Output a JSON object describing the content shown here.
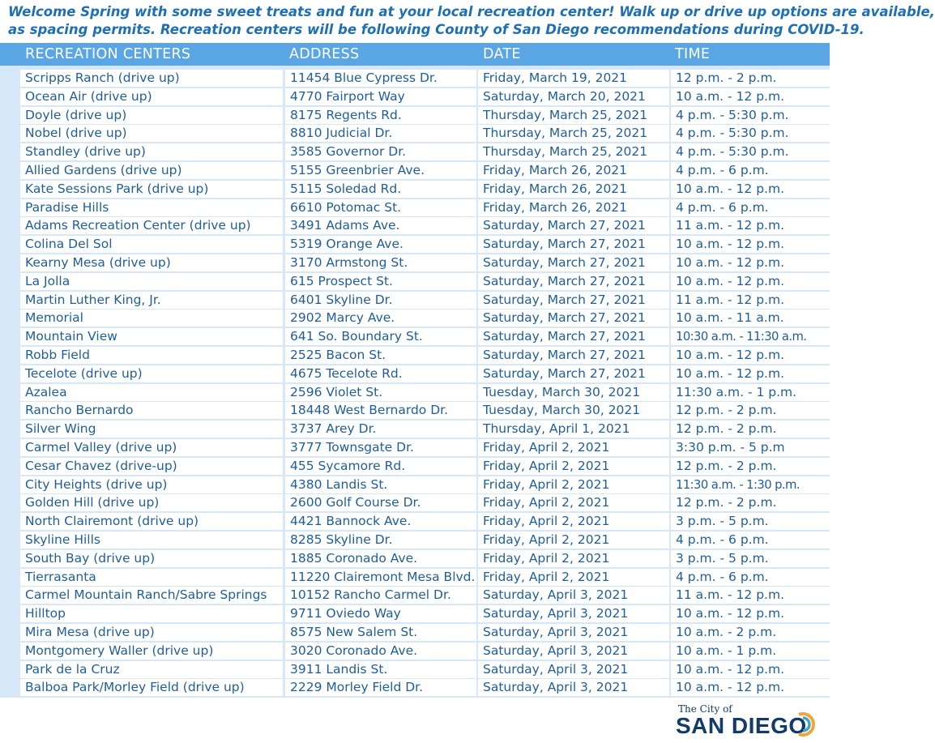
{
  "intro": {
    "line1": "Welcome Spring with some sweet treats and fun at your local recreation center! Walk up or drive up options are available,",
    "line2": "as spacing permits. Recreation centers will be following County of San Diego recommendations  during COVID-19."
  },
  "header": {
    "col0": "RECREATION CENTERS",
    "col1": "ADDRESS",
    "col2": "DATE",
    "col3": "TIME"
  },
  "rows": [
    [
      "Scripps Ranch (drive up)",
      "11454 Blue Cypress Dr.",
      "Friday, March 19, 2021",
      "12 p.m. - 2 p.m."
    ],
    [
      "Ocean Air (drive up)",
      "4770 Fairport Way",
      "Saturday, March 20, 2021",
      "10 a.m. - 12 p.m."
    ],
    [
      "Doyle (drive up)",
      "8175 Regents Rd.",
      "Thursday, March 25, 2021",
      "4 p.m. - 5:30 p.m."
    ],
    [
      "Nobel (drive up)",
      "8810 Judicial Dr.",
      "Thursday, March 25, 2021",
      "4 p.m. - 5:30 p.m."
    ],
    [
      "Standley (drive up)",
      "3585 Governor Dr.",
      "Thursday, March 25, 2021",
      "4 p.m. - 5:30 p.m."
    ],
    [
      "Allied Gardens (drive up)",
      "5155 Greenbrier Ave.",
      "Friday, March 26, 2021",
      "4 p.m. - 6 p.m."
    ],
    [
      "Kate Sessions Park (drive up)",
      "5115 Soledad Rd.",
      "Friday, March 26, 2021",
      "10 a.m. - 12 p.m."
    ],
    [
      "Paradise Hills",
      "6610 Potomac St.",
      "Friday, March 26, 2021",
      "4 p.m. - 6 p.m."
    ],
    [
      "Adams Recreation Center (drive up)",
      "3491 Adams Ave.",
      "Saturday, March 27, 2021",
      "11 a.m. - 12 p.m."
    ],
    [
      "Colina Del Sol",
      "5319 Orange Ave.",
      "Saturday, March 27, 2021",
      "10 a.m. - 12 p.m."
    ],
    [
      "Kearny Mesa (drive up)",
      "3170 Armstong St.",
      "Saturday, March 27, 2021",
      "10 a.m. - 12 p.m."
    ],
    [
      "La Jolla",
      "615 Prospect St.",
      "Saturday, March 27, 2021",
      "10 a.m. - 12 p.m."
    ],
    [
      "Martin Luther King, Jr.",
      "6401 Skyline Dr.",
      "Saturday, March 27, 2021",
      "11 a.m. - 12 p.m."
    ],
    [
      "Memorial",
      "2902 Marcy Ave.",
      "Saturday, March 27, 2021",
      "10 a.m. - 11 a.m."
    ],
    [
      "Mountain View",
      "641 So. Boundary St.",
      "Saturday, March 27, 2021",
      "10:30 a.m. - 11:30 a.m."
    ],
    [
      "Robb Field",
      "2525 Bacon St.",
      "Saturday, March 27, 2021",
      "10 a.m. - 12 p.m."
    ],
    [
      "Tecelote (drive up)",
      "4675 Tecelote Rd.",
      "Saturday, March 27, 2021",
      "10 a.m. - 12 p.m."
    ],
    [
      "Azalea",
      "2596 Violet St.",
      "Tuesday, March 30, 2021",
      "11:30 a.m. - 1 p.m."
    ],
    [
      "Rancho Bernardo",
      "18448 West Bernardo Dr.",
      "Tuesday, March 30, 2021",
      "12 p.m. - 2 p.m."
    ],
    [
      "Silver Wing",
      "3737 Arey Dr.",
      "Thursday, April 1, 2021",
      "12 p.m. - 2 p.m."
    ],
    [
      "Carmel Valley (drive up)",
      "3777 Townsgate Dr.",
      "Friday, April 2, 2021",
      "3:30 p.m. - 5 p.m"
    ],
    [
      "Cesar Chavez (drive-up)",
      "455 Sycamore Rd.",
      "Friday, April 2, 2021",
      "12 p.m. - 2 p.m."
    ],
    [
      "City Heights (drive up)",
      "4380 Landis St.",
      "Friday, April 2, 2021",
      "11:30 a.m. - 1:30 p.m."
    ],
    [
      "Golden Hill (drive up)",
      "2600 Golf Course Dr.",
      "Friday, April 2, 2021",
      "12 p.m. - 2 p.m."
    ],
    [
      "North Clairemont (drive up)",
      "4421 Bannock Ave.",
      "Friday, April 2, 2021",
      "3 p.m. - 5 p.m."
    ],
    [
      "Skyline Hills",
      "8285 Skyline Dr.",
      "Friday, April 2, 2021",
      "4 p.m. - 6 p.m."
    ],
    [
      "South Bay (drive up)",
      "1885 Coronado Ave.",
      "Friday, April 2, 2021",
      "3 p.m. - 5 p.m."
    ],
    [
      "Tierrasanta",
      "11220 Clairemont Mesa Blvd.",
      "Friday, April 2, 2021",
      "4 p.m. - 6 p.m."
    ],
    [
      "Carmel Mountain Ranch/Sabre Springs",
      "10152 Rancho Carmel Dr.",
      "Saturday, April 3, 2021",
      "11 a.m. - 12 p.m."
    ],
    [
      "Hilltop",
      "9711 Oviedo Way",
      "Saturday, April 3, 2021",
      "10 a.m. - 12 p.m."
    ],
    [
      "Mira Mesa (drive up)",
      "8575 New Salem St.",
      "Saturday, April 3, 2021",
      "10 a.m. - 2 p.m."
    ],
    [
      "Montgomery Waller (drive up)",
      "3020 Coronado Ave.",
      "Saturday, April 3, 2021",
      "10 a.m. - 1 p.m."
    ],
    [
      "Park de la Cruz",
      "3911 Landis St.",
      "Saturday, April 3, 2021",
      "10 a.m. - 12 p.m."
    ],
    [
      "Balboa Park/Morley Field (drive up)",
      "2229 Morley Field Dr.",
      "Saturday, April 3, 2021",
      "10 a.m. - 12 p.m."
    ]
  ],
  "logo": {
    "small": "The City of",
    "big": "SAN DIEGO",
    "icon": "san-diego-logo-arcs-icon",
    "colors": {
      "navy": "#123a6a",
      "orange": "#f2a33a",
      "teal": "#3aa7c9"
    }
  },
  "colors": {
    "header_bg": "#5aa5e3",
    "band": "#d6e8f7",
    "text": "#1f5e9a",
    "intro": "#1e6fb4"
  }
}
